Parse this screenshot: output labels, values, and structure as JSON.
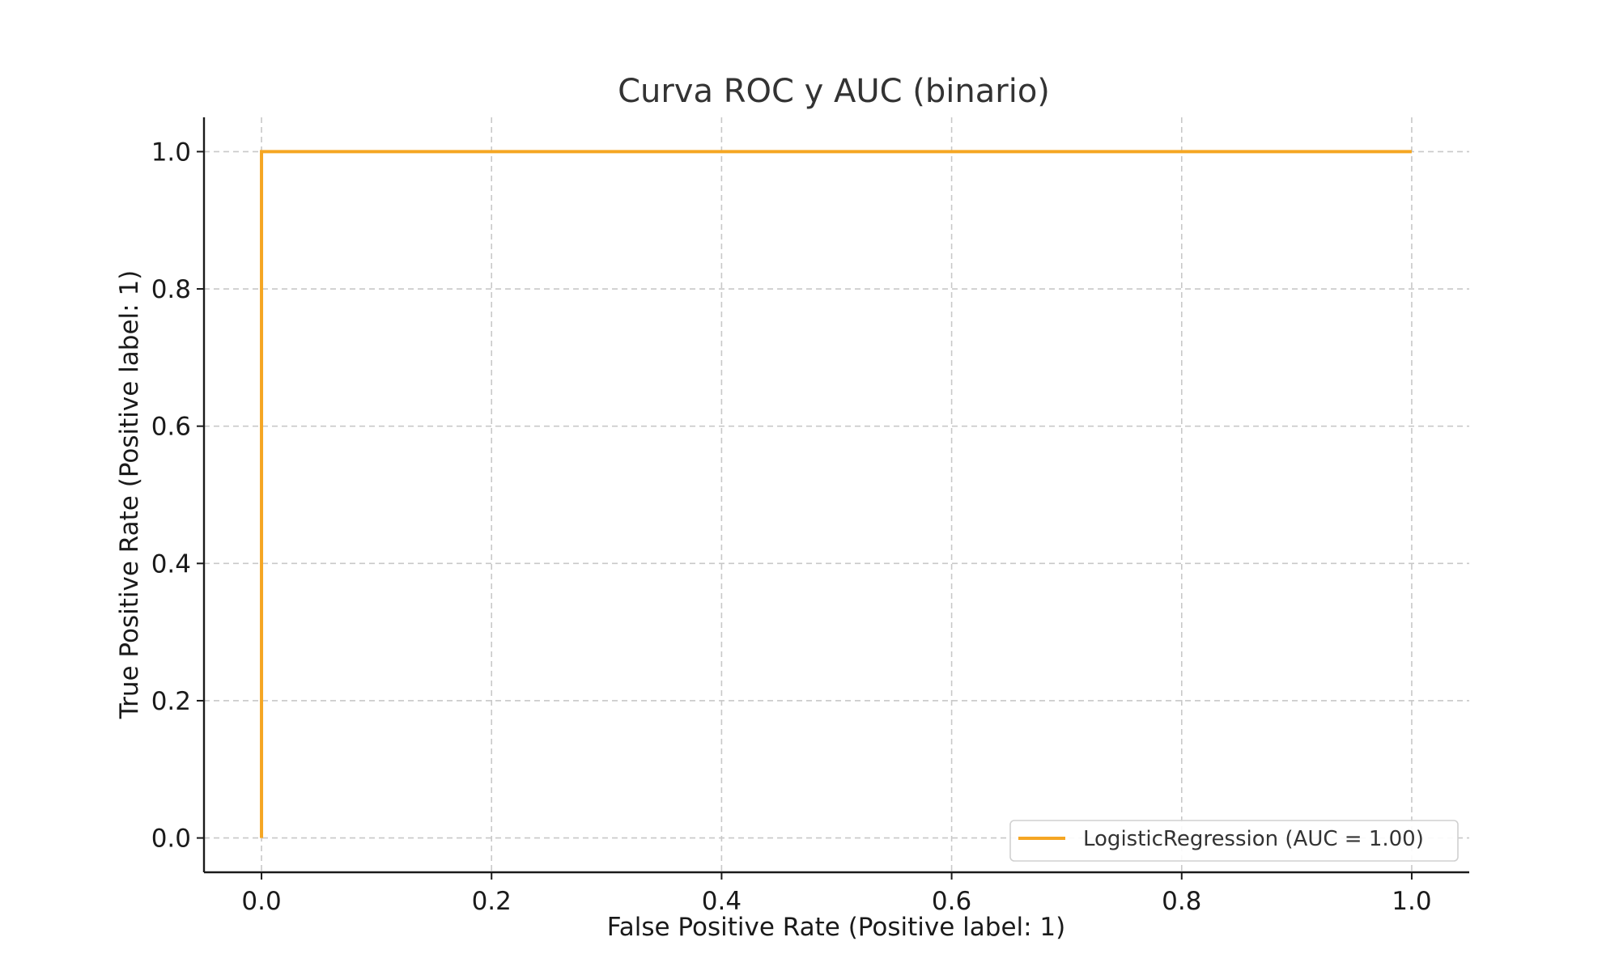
{
  "chart_data": {
    "type": "line",
    "title": "Curva ROC y AUC (binario)",
    "xlabel": "False Positive Rate (Positive label: 1)",
    "ylabel": "True Positive Rate (Positive label: 1)",
    "xlim": [
      -0.05,
      1.05
    ],
    "ylim": [
      -0.05,
      1.05
    ],
    "xticks": [
      0.0,
      0.2,
      0.4,
      0.6,
      0.8,
      1.0
    ],
    "xtick_labels": [
      "0.0",
      "0.2",
      "0.4",
      "0.6",
      "0.8",
      "1.0"
    ],
    "yticks": [
      0.0,
      0.2,
      0.4,
      0.6,
      0.8,
      1.0
    ],
    "ytick_labels": [
      "0.0",
      "0.2",
      "0.4",
      "0.6",
      "0.8",
      "1.0"
    ],
    "grid": true,
    "legend_position": "bottom-right",
    "series": [
      {
        "name": "LogisticRegression (AUC = 1.00)",
        "color": "#f5a623",
        "x": [
          0.0,
          0.0,
          1.0
        ],
        "y": [
          0.0,
          1.0,
          1.0
        ]
      }
    ]
  }
}
